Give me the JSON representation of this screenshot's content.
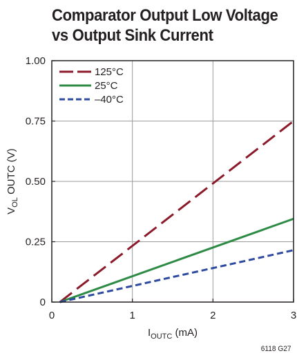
{
  "title_lines": [
    "Comparator Output Low Voltage",
    "vs Output Sink Current"
  ],
  "figure_id": "6118 G27",
  "colors": {
    "series_125": "#8b1a2b",
    "series_25": "#2e8b46",
    "series_m40": "#2e4a9e",
    "grid": "#9a9a9a",
    "frame": "#231f20"
  },
  "chart_data": {
    "type": "line",
    "title": "Comparator Output Low Voltage vs Output Sink Current",
    "xlabel_main": "I",
    "xlabel_sub": "OUTC",
    "xlabel_unit": " (mA)",
    "ylabel_main": "V",
    "ylabel_sub": "OL",
    "ylabel_rest": " OUTC (V)",
    "xlim": [
      0,
      3
    ],
    "ylim": [
      0,
      1.0
    ],
    "x_ticks": [
      0,
      1,
      2,
      3
    ],
    "x_tick_labels": [
      "0",
      "1",
      "2",
      "3"
    ],
    "y_ticks": [
      0,
      0.25,
      0.5,
      0.75,
      1.0
    ],
    "y_tick_labels": [
      "0",
      "0.25",
      "0.50",
      "0.75",
      "1.00"
    ],
    "grid": true,
    "legend_position": "top-left",
    "series": [
      {
        "name": "125°C",
        "style": "long-dash",
        "color_key": "series_125",
        "x": [
          0.1,
          3.0
        ],
        "y": [
          0.0,
          0.75
        ]
      },
      {
        "name": "25°C",
        "style": "solid",
        "color_key": "series_25",
        "x": [
          0.1,
          3.0
        ],
        "y": [
          0.0,
          0.345
        ]
      },
      {
        "name": "–40°C",
        "style": "short-dash",
        "color_key": "series_m40",
        "x": [
          0.1,
          3.0
        ],
        "y": [
          0.0,
          0.215
        ]
      }
    ]
  }
}
